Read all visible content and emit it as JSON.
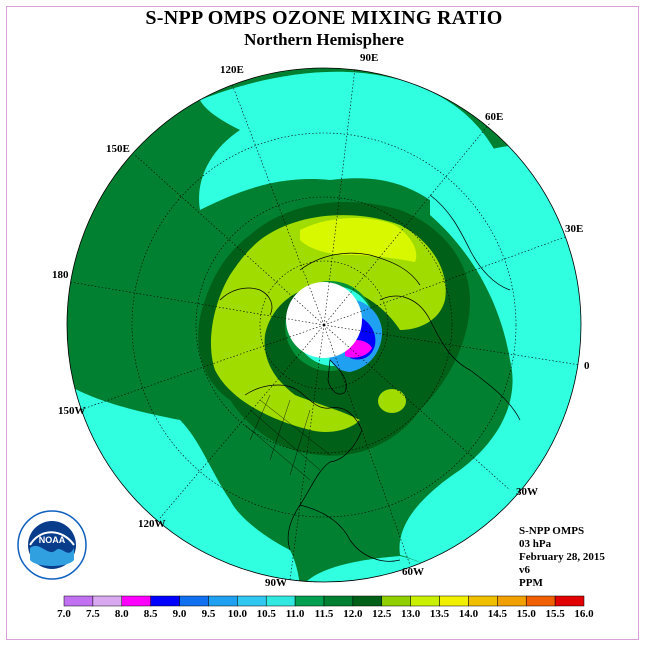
{
  "title": "S-NPP OMPS OZONE MIXING RATIO",
  "subtitle": "Northern Hemisphere",
  "longitude_labels": {
    "lon_90e": "90E",
    "lon_120e": "120E",
    "lon_60e": "60E",
    "lon_150e": "150E",
    "lon_30e": "30E",
    "lon_180": "180",
    "lon_0": "0",
    "lon_150w": "150W",
    "lon_30w": "30W",
    "lon_120w": "120W",
    "lon_60w": "60W",
    "lon_90w": "90W"
  },
  "info": {
    "instrument": "S-NPP OMPS",
    "level": "03 hPa",
    "date": "February 28, 2015",
    "version": "v6",
    "units": "PPM"
  },
  "logo": {
    "text": "NOAA",
    "ring_text": "NATIONAL OCEANIC AND ATMOSPHERIC ADMINISTRATION · U.S. DEPARTMENT OF COMMERCE"
  },
  "colorbar": {
    "ticks": [
      "7.0",
      "7.5",
      "8.0",
      "8.5",
      "9.0",
      "9.5",
      "10.0",
      "10.5",
      "11.0",
      "11.5",
      "12.0",
      "12.5",
      "13.0",
      "13.5",
      "14.0",
      "14.5",
      "15.0",
      "15.5",
      "16.0"
    ],
    "colors": [
      "#c070f0",
      "#d8a8f0",
      "#ff00ff",
      "#0000ff",
      "#1070f0",
      "#20a0f0",
      "#30c8f0",
      "#30e8e0",
      "#00a050",
      "#008030",
      "#006018",
      "#90d000",
      "#c8f000",
      "#f0f000",
      "#f0c000",
      "#f0a000",
      "#f06000",
      "#e00000",
      "#8b5030"
    ]
  },
  "colors": {
    "ring_outer": "#008030",
    "zone_cyan": "#30ffe0",
    "zone_green": "#009038",
    "zone_dark": "#006018",
    "zone_lime": "#a0dc00",
    "zone_yellow": "#d8f800",
    "polar_blank": "#ffffff",
    "vortex_blue": "#0000ff",
    "vortex_magenta": "#ff00ff"
  }
}
